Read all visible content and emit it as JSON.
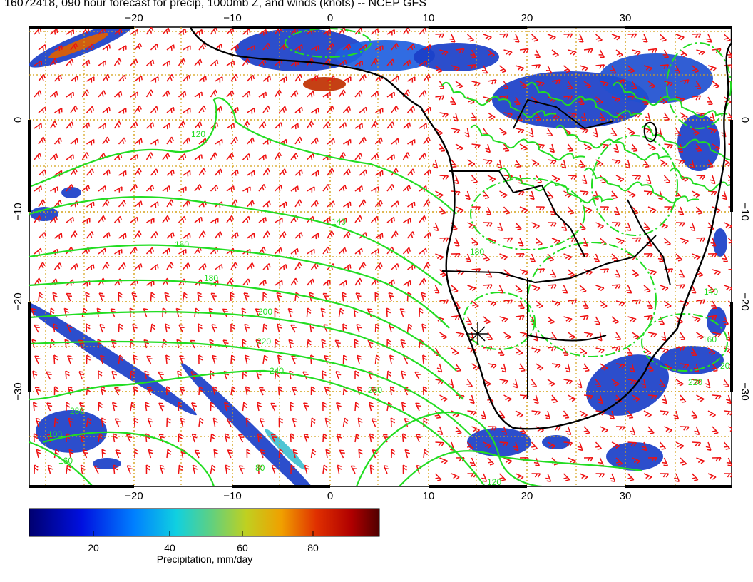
{
  "title": "16072418, 090 hour forecast for precip, 1000mb Z, and winds (knots) -- NCEP GFS",
  "map": {
    "lon_ticks": [
      "−20",
      "−10",
      "0",
      "10",
      "20",
      "30"
    ],
    "lat_ticks": [
      "0",
      "−10",
      "−20",
      "−30"
    ],
    "contour_labels": [
      "120",
      "140",
      "160",
      "180",
      "200",
      "220",
      "240",
      "260",
      "280",
      "100",
      "160",
      "80"
    ],
    "colors": {
      "gridline": "#d4a017",
      "contour": "#22dd22",
      "wind_barb": "#ee1111",
      "coastline": "#000000",
      "precip_light": "#2050d0",
      "precip_heavy": "#cc2200"
    }
  },
  "colorbar": {
    "ticks": [
      "20",
      "40",
      "60",
      "80"
    ],
    "label": "Precipitation, mm/day",
    "colors": [
      "#000080",
      "#0000d0",
      "#0060ff",
      "#00c0e0",
      "#40d0a0",
      "#a0d040",
      "#e0c000",
      "#e07000",
      "#d00000",
      "#700000"
    ]
  }
}
